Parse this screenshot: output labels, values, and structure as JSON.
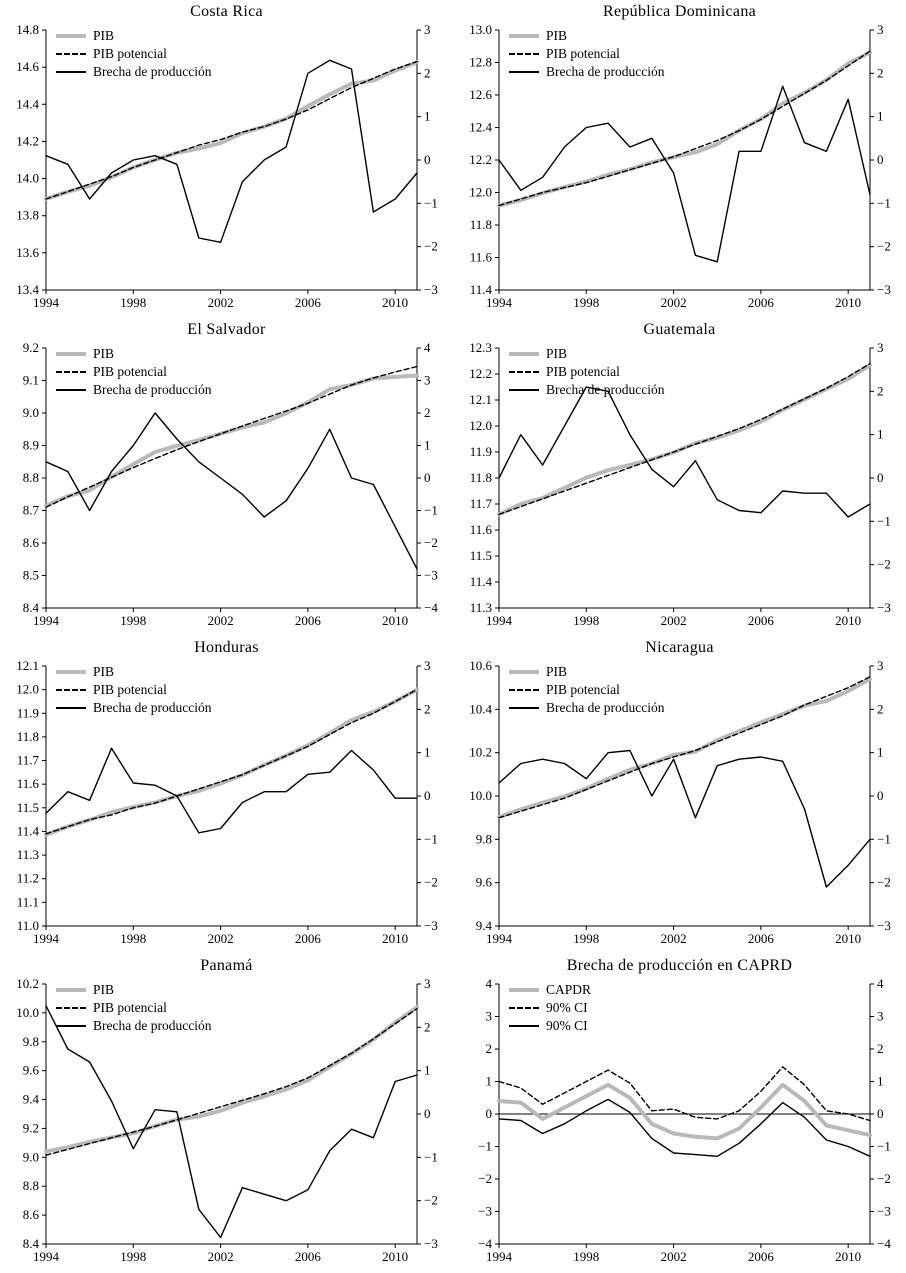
{
  "colors": {
    "pib_line": "#b9b9b9",
    "ink": "#000000"
  },
  "chart_data": [
    {
      "type": "line",
      "title": "Costa Rica",
      "x": [
        1994,
        1995,
        1996,
        1997,
        1998,
        1999,
        2000,
        2001,
        2002,
        2003,
        2004,
        2005,
        2006,
        2007,
        2008,
        2009,
        2010,
        2011
      ],
      "x_ticks": [
        1994,
        1998,
        2002,
        2006,
        2010
      ],
      "x_range": [
        1994,
        2011
      ],
      "left_axis": {
        "min": 13.4,
        "max": 14.8,
        "step": 0.2,
        "decimals": 1
      },
      "right_axis": {
        "min": -3,
        "max": 3,
        "step": 1,
        "decimals": 0
      },
      "zero_line": false,
      "series": [
        {
          "name": "PIB",
          "axis": "left",
          "style": "gray",
          "values": [
            13.891,
            13.929,
            13.961,
            14.007,
            14.06,
            14.101,
            14.139,
            14.162,
            14.191,
            14.245,
            14.28,
            14.323,
            14.39,
            14.453,
            14.511,
            14.528,
            14.581,
            14.627
          ]
        },
        {
          "name": "PIB potencial",
          "axis": "left",
          "style": "dashed",
          "values": [
            13.89,
            13.93,
            13.97,
            14.01,
            14.06,
            14.1,
            14.14,
            14.18,
            14.21,
            14.25,
            14.28,
            14.32,
            14.37,
            14.43,
            14.49,
            14.54,
            14.59,
            14.63
          ]
        },
        {
          "name": "Brecha de producción",
          "axis": "right",
          "style": "solid",
          "values": [
            0.1,
            -0.1,
            -0.9,
            -0.3,
            0.0,
            0.1,
            -0.1,
            -1.8,
            -1.9,
            -0.5,
            0.0,
            0.3,
            2.0,
            2.3,
            2.1,
            -1.2,
            -0.9,
            -0.3
          ]
        }
      ]
    },
    {
      "type": "line",
      "title": "República Dominicana",
      "x": [
        1994,
        1995,
        1996,
        1997,
        1998,
        1999,
        2000,
        2001,
        2002,
        2003,
        2004,
        2005,
        2006,
        2007,
        2008,
        2009,
        2010,
        2011
      ],
      "x_ticks": [
        1994,
        1998,
        2002,
        2006,
        2010
      ],
      "x_range": [
        1994,
        2011
      ],
      "left_axis": {
        "min": 11.4,
        "max": 13.0,
        "step": 0.2,
        "decimals": 1
      },
      "right_axis": {
        "min": -3,
        "max": 3,
        "step": 1,
        "decimals": 0
      },
      "zero_line": false,
      "series": [
        {
          "name": "PIB",
          "axis": "left",
          "style": "gray",
          "values": [
            11.92,
            11.953,
            11.996,
            12.033,
            12.068,
            12.109,
            12.143,
            12.185,
            12.217,
            12.248,
            12.297,
            12.382,
            12.452,
            12.547,
            12.614,
            12.692,
            12.794,
            12.862
          ]
        },
        {
          "name": "PIB potencial",
          "axis": "left",
          "style": "dashed",
          "values": [
            11.92,
            11.96,
            12.0,
            12.03,
            12.06,
            12.1,
            12.14,
            12.18,
            12.22,
            12.27,
            12.32,
            12.38,
            12.45,
            12.53,
            12.61,
            12.69,
            12.78,
            12.87
          ]
        },
        {
          "name": "Brecha de producción",
          "axis": "right",
          "style": "solid",
          "values": [
            0.0,
            -0.7,
            -0.4,
            0.3,
            0.75,
            0.85,
            0.3,
            0.5,
            -0.3,
            -2.2,
            -2.35,
            0.2,
            0.2,
            1.7,
            0.4,
            0.2,
            1.4,
            -0.8
          ]
        }
      ]
    },
    {
      "type": "line",
      "title": "El Salvador",
      "x": [
        1994,
        1995,
        1996,
        1997,
        1998,
        1999,
        2000,
        2001,
        2002,
        2003,
        2004,
        2005,
        2006,
        2007,
        2008,
        2009,
        2010,
        2011
      ],
      "x_ticks": [
        1994,
        1998,
        2002,
        2006,
        2010
      ],
      "x_range": [
        1994,
        2011
      ],
      "left_axis": {
        "min": 8.4,
        "max": 9.2,
        "step": 0.1,
        "decimals": 1
      },
      "right_axis": {
        "min": -4,
        "max": 4,
        "step": 1,
        "decimals": 0
      },
      "zero_line": false,
      "series": [
        {
          "name": "PIB",
          "axis": "left",
          "style": "gray",
          "values": [
            8.715,
            8.744,
            8.762,
            8.804,
            8.842,
            8.88,
            8.899,
            8.917,
            8.936,
            8.955,
            8.971,
            8.999,
            9.033,
            9.073,
            9.086,
            9.106,
            9.111,
            9.115
          ]
        },
        {
          "name": "PIB potencial",
          "axis": "left",
          "style": "dashed",
          "values": [
            8.71,
            8.742,
            8.772,
            8.802,
            8.832,
            8.86,
            8.887,
            8.912,
            8.936,
            8.96,
            8.983,
            9.006,
            9.03,
            9.058,
            9.086,
            9.108,
            9.126,
            9.143
          ]
        },
        {
          "name": "Brecha de producción",
          "axis": "right",
          "style": "solid",
          "values": [
            0.5,
            0.2,
            -1.0,
            0.2,
            1.0,
            2.0,
            1.2,
            0.5,
            0.0,
            -0.5,
            -1.2,
            -0.7,
            0.3,
            1.5,
            0.0,
            -0.2,
            -1.5,
            -2.8
          ]
        }
      ]
    },
    {
      "type": "line",
      "title": "Guatemala",
      "x": [
        1994,
        1995,
        1996,
        1997,
        1998,
        1999,
        2000,
        2001,
        2002,
        2003,
        2004,
        2005,
        2006,
        2007,
        2008,
        2009,
        2010,
        2011
      ],
      "x_ticks": [
        1994,
        1998,
        2002,
        2006,
        2010
      ],
      "x_range": [
        1994,
        2011
      ],
      "left_axis": {
        "min": 11.3,
        "max": 12.3,
        "step": 0.1,
        "decimals": 1
      },
      "right_axis": {
        "min": -3,
        "max": 3,
        "step": 1,
        "decimals": 0
      },
      "zero_line": false,
      "series": [
        {
          "name": "PIB",
          "axis": "left",
          "style": "gray",
          "values": [
            11.66,
            11.7,
            11.723,
            11.762,
            11.801,
            11.83,
            11.85,
            11.872,
            11.898,
            11.934,
            11.955,
            11.983,
            12.017,
            12.062,
            12.102,
            12.142,
            12.181,
            12.234
          ]
        },
        {
          "name": "PIB potencial",
          "axis": "left",
          "style": "dashed",
          "values": [
            11.66,
            11.69,
            11.72,
            11.75,
            11.78,
            11.81,
            11.84,
            11.87,
            11.9,
            11.93,
            11.96,
            11.99,
            12.025,
            12.065,
            12.105,
            12.145,
            12.19,
            12.24
          ]
        },
        {
          "name": "Brecha de producción",
          "axis": "right",
          "style": "solid",
          "values": [
            0.0,
            1.0,
            0.3,
            1.2,
            2.1,
            2.0,
            1.0,
            0.2,
            -0.2,
            0.4,
            -0.5,
            -0.75,
            -0.8,
            -0.3,
            -0.35,
            -0.35,
            -0.9,
            -0.6
          ]
        }
      ]
    },
    {
      "type": "line",
      "title": "Honduras",
      "x": [
        1994,
        1995,
        1996,
        1997,
        1998,
        1999,
        2000,
        2001,
        2002,
        2003,
        2004,
        2005,
        2006,
        2007,
        2008,
        2009,
        2010,
        2011
      ],
      "x_ticks": [
        1994,
        1998,
        2002,
        2006,
        2010
      ],
      "x_range": [
        1994,
        2011
      ],
      "left_axis": {
        "min": 11.0,
        "max": 12.1,
        "step": 0.1,
        "decimals": 1
      },
      "right_axis": {
        "min": -3,
        "max": 3,
        "step": 1,
        "decimals": 0
      },
      "zero_line": false,
      "series": [
        {
          "name": "PIB",
          "axis": "left",
          "style": "gray",
          "values": [
            11.386,
            11.421,
            11.449,
            11.481,
            11.503,
            11.523,
            11.55,
            11.572,
            11.603,
            11.639,
            11.681,
            11.721,
            11.765,
            11.816,
            11.871,
            11.906,
            11.95,
            12.0
          ]
        },
        {
          "name": "PIB potencial",
          "axis": "left",
          "style": "dashed",
          "values": [
            11.39,
            11.42,
            11.45,
            11.47,
            11.5,
            11.52,
            11.55,
            11.58,
            11.61,
            11.64,
            11.68,
            11.72,
            11.76,
            11.81,
            11.86,
            11.9,
            11.95,
            12.0
          ]
        },
        {
          "name": "Brecha de producción",
          "axis": "right",
          "style": "solid",
          "values": [
            -0.4,
            0.1,
            -0.1,
            1.1,
            0.3,
            0.25,
            0.0,
            -0.85,
            -0.75,
            -0.15,
            0.1,
            0.1,
            0.5,
            0.55,
            1.05,
            0.6,
            -0.05,
            -0.05
          ]
        }
      ]
    },
    {
      "type": "line",
      "title": "Nicaragua",
      "x": [
        1994,
        1995,
        1996,
        1997,
        1998,
        1999,
        2000,
        2001,
        2002,
        2003,
        2004,
        2005,
        2006,
        2007,
        2008,
        2009,
        2010,
        2011
      ],
      "x_ticks": [
        1994,
        1998,
        2002,
        2006,
        2010
      ],
      "x_range": [
        1994,
        2011
      ],
      "left_axis": {
        "min": 9.4,
        "max": 10.6,
        "step": 0.2,
        "decimals": 1
      },
      "right_axis": {
        "min": -3,
        "max": 3,
        "step": 1,
        "decimals": 0
      },
      "zero_line": false,
      "series": [
        {
          "name": "PIB",
          "axis": "left",
          "style": "gray",
          "values": [
            9.903,
            9.938,
            9.969,
            9.998,
            10.034,
            10.08,
            10.121,
            10.15,
            10.189,
            10.205,
            10.257,
            10.299,
            10.339,
            10.378,
            10.417,
            10.439,
            10.484,
            10.54
          ]
        },
        {
          "name": "PIB potencial",
          "axis": "left",
          "style": "dashed",
          "values": [
            9.9,
            9.93,
            9.96,
            9.99,
            10.03,
            10.07,
            10.11,
            10.15,
            10.18,
            10.21,
            10.25,
            10.29,
            10.33,
            10.37,
            10.42,
            10.46,
            10.5,
            10.55
          ]
        },
        {
          "name": "Brecha de producción",
          "axis": "right",
          "style": "solid",
          "values": [
            0.3,
            0.75,
            0.85,
            0.75,
            0.4,
            1.0,
            1.05,
            0.0,
            0.85,
            -0.5,
            0.7,
            0.85,
            0.9,
            0.8,
            -0.3,
            -2.1,
            -1.6,
            -1.0
          ]
        }
      ]
    },
    {
      "type": "line",
      "title": "Panamá",
      "x": [
        1994,
        1995,
        1996,
        1997,
        1998,
        1999,
        2000,
        2001,
        2002,
        2003,
        2004,
        2005,
        2006,
        2007,
        2008,
        2009,
        2010,
        2011
      ],
      "x_ticks": [
        1994,
        1998,
        2002,
        2006,
        2010
      ],
      "x_range": [
        1994,
        2011
      ],
      "left_axis": {
        "min": 8.4,
        "max": 10.2,
        "step": 0.2,
        "decimals": 1
      },
      "right_axis": {
        "min": -3,
        "max": 3,
        "step": 1,
        "decimals": 0
      },
      "zero_line": false,
      "series": [
        {
          "name": "PIB",
          "axis": "left",
          "style": "gray",
          "values": [
            9.04,
            9.07,
            9.107,
            9.138,
            9.167,
            9.216,
            9.261,
            9.283,
            9.322,
            9.378,
            9.422,
            9.47,
            9.533,
            9.627,
            9.717,
            9.815,
            9.933,
            10.039
          ]
        },
        {
          "name": "PIB potencial",
          "axis": "left",
          "style": "dashed",
          "values": [
            9.015,
            9.055,
            9.095,
            9.135,
            9.175,
            9.215,
            9.26,
            9.305,
            9.35,
            9.395,
            9.44,
            9.49,
            9.55,
            9.635,
            9.72,
            9.82,
            9.925,
            10.03
          ]
        },
        {
          "name": "Brecha de producción",
          "axis": "right",
          "style": "solid",
          "values": [
            2.5,
            1.5,
            1.2,
            0.3,
            -0.8,
            0.1,
            0.05,
            -2.2,
            -2.85,
            -1.7,
            -1.85,
            -2.0,
            -1.75,
            -0.85,
            -0.35,
            -0.55,
            0.75,
            0.9
          ]
        }
      ]
    },
    {
      "type": "line",
      "title": "Brecha de producción en CAPRD",
      "x": [
        1994,
        1995,
        1996,
        1997,
        1998,
        1999,
        2000,
        2001,
        2002,
        2003,
        2004,
        2005,
        2006,
        2007,
        2008,
        2009,
        2010,
        2011
      ],
      "x_ticks": [
        1994,
        1998,
        2002,
        2006,
        2010
      ],
      "x_range": [
        1994,
        2011
      ],
      "left_axis": {
        "min": -4,
        "max": 4,
        "step": 1,
        "decimals": 0
      },
      "right_axis": {
        "min": -4,
        "max": 4,
        "step": 1,
        "decimals": 0
      },
      "zero_line": true,
      "series": [
        {
          "name": "CAPDR",
          "axis": "left",
          "style": "gray",
          "values": [
            0.4,
            0.35,
            -0.15,
            0.2,
            0.55,
            0.9,
            0.5,
            -0.3,
            -0.6,
            -0.7,
            -0.75,
            -0.45,
            0.2,
            0.9,
            0.4,
            -0.35,
            -0.5,
            -0.65
          ]
        },
        {
          "name": "90% CI",
          "axis": "left",
          "style": "dashed",
          "values": [
            1.0,
            0.8,
            0.3,
            0.65,
            1.0,
            1.35,
            0.95,
            0.1,
            0.15,
            -0.1,
            -0.15,
            0.1,
            0.7,
            1.45,
            0.9,
            0.1,
            0.0,
            -0.2
          ]
        },
        {
          "name": "90% CI",
          "axis": "left",
          "style": "solid",
          "values": [
            -0.15,
            -0.2,
            -0.6,
            -0.3,
            0.1,
            0.45,
            0.05,
            -0.75,
            -1.2,
            -1.25,
            -1.3,
            -0.9,
            -0.3,
            0.35,
            -0.1,
            -0.8,
            -1.0,
            -1.3
          ]
        }
      ]
    }
  ]
}
